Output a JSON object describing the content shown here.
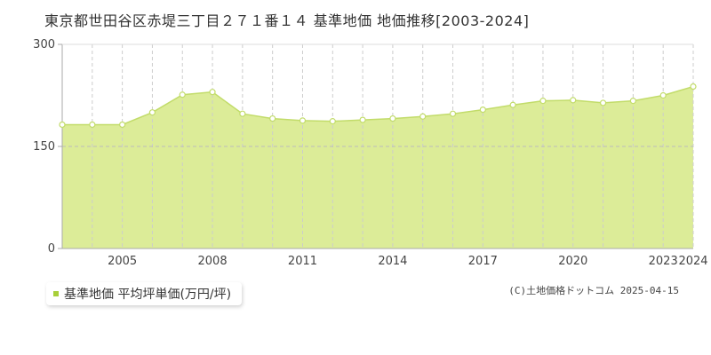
{
  "title": "東京都世田谷区赤堤三丁目２７１番１４ 基準地価 地価推移[2003-2024]",
  "legend_label": "基準地価 平均坪単価(万円/坪)",
  "credit": "(C)土地価格ドットコム 2025-04-15",
  "colors": {
    "fill": "#dcec98",
    "line": "#c2dc6a",
    "marker": "#a8cf3a",
    "grid": "#cccccc"
  },
  "chart_data": {
    "type": "area",
    "title": "",
    "xlabel": "",
    "ylabel": "",
    "ylim": [
      0,
      300
    ],
    "yticks": [
      0,
      150,
      300
    ],
    "xlim": [
      2003,
      2024
    ],
    "xticks": [
      2005,
      2008,
      2011,
      2014,
      2017,
      2020,
      2023,
      2024
    ],
    "grid": "vertical dashed at every year, horizontal dashed at 150",
    "x": [
      2003,
      2004,
      2005,
      2006,
      2007,
      2008,
      2009,
      2010,
      2011,
      2012,
      2013,
      2014,
      2015,
      2016,
      2017,
      2018,
      2019,
      2020,
      2021,
      2022,
      2023,
      2024
    ],
    "series": [
      {
        "name": "基準地価 平均坪単価(万円/坪)",
        "values": [
          182,
          182,
          182,
          200,
          226,
          230,
          198,
          191,
          188,
          187,
          189,
          191,
          194,
          198,
          204,
          211,
          217,
          218,
          214,
          217,
          225,
          238
        ]
      }
    ]
  }
}
